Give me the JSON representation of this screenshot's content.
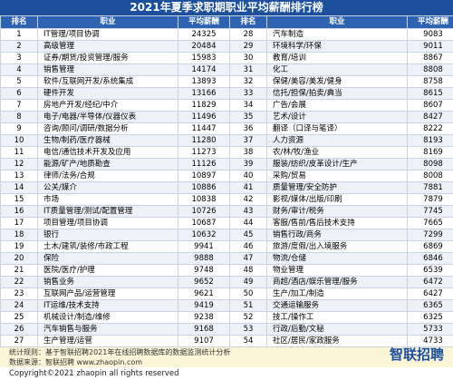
{
  "header": {
    "title": "2021年夏季求职期职业平均薪酬排行榜"
  },
  "table": {
    "columns": [
      "排名",
      "职业",
      "平均薪酬",
      "排名",
      "职业",
      "平均薪酬"
    ],
    "rows": [
      [
        1,
        "IT管理/项目协调",
        24325,
        28,
        "汽车制造",
        9083
      ],
      [
        2,
        "高级管理",
        20484,
        29,
        "环境科学/环保",
        9011
      ],
      [
        3,
        "证券/期货/投资管理/服务",
        15983,
        30,
        "教育/培训",
        8867
      ],
      [
        4,
        "销售管理",
        14174,
        31,
        "化工",
        8808
      ],
      [
        5,
        "软件/互联网开发/系统集成",
        13893,
        32,
        "保健/美容/美发/健身",
        8758
      ],
      [
        6,
        "硬件开发",
        13166,
        33,
        "信托/担保/拍卖/典当",
        8615
      ],
      [
        7,
        "房地产开发/经纪/中介",
        11829,
        34,
        "广告/会展",
        8607
      ],
      [
        8,
        "电子/电器/半导体/仪器仪表",
        11496,
        35,
        "艺术/设计",
        8427
      ],
      [
        9,
        "咨询/顾问/调研/数据分析",
        11447,
        36,
        "翻译（口译与笔译）",
        8222
      ],
      [
        10,
        "生物/制药/医疗器械",
        11280,
        37,
        "人力资源",
        8193
      ],
      [
        11,
        "电信/通信技术开发及应用",
        11273,
        38,
        "农/林/牧/渔业",
        8169
      ],
      [
        12,
        "能源/矿产/地质勘查",
        11126,
        39,
        "服装/纺织/皮革设计/生产",
        8098
      ],
      [
        13,
        "律师/法务/合规",
        10897,
        40,
        "采购/贸易",
        8008
      ],
      [
        14,
        "公关/媒介",
        10886,
        41,
        "质量管理/安全防护",
        7881
      ],
      [
        15,
        "市场",
        10838,
        42,
        "影视/媒体/出版/印刷",
        7879
      ],
      [
        16,
        "IT质量管理/测试/配置管理",
        10726,
        43,
        "财务/审计/税务",
        7745
      ],
      [
        17,
        "项目管理/项目协调",
        10687,
        44,
        "客服/售前/售后技术支持",
        7665
      ],
      [
        18,
        "银行",
        10632,
        45,
        "销售行政/商务",
        7299
      ],
      [
        19,
        "土木/建筑/装修/市政工程",
        9941,
        46,
        "旅游/度假/出入境服务",
        6869
      ],
      [
        20,
        "保险",
        9888,
        47,
        "物流/仓储",
        6846
      ],
      [
        21,
        "医院/医疗/护理",
        9748,
        48,
        "物业管理",
        6539
      ],
      [
        22,
        "销售业务",
        9652,
        49,
        "商超/酒店/娱乐管理/服务",
        6472
      ],
      [
        23,
        "互联网产品/运营管理",
        9621,
        50,
        "生产/加工/制造",
        6427
      ],
      [
        24,
        "IT运维/技术支持",
        9419,
        51,
        "交通运输服务",
        6365
      ],
      [
        25,
        "机械设计/制造/维修",
        9238,
        52,
        "技工/操作工",
        6325
      ],
      [
        26,
        "汽车销售与服务",
        9168,
        53,
        "行政/后勤/文秘",
        5733
      ],
      [
        27,
        "生产管理/运营",
        9107,
        54,
        "社区/居民/家政服务",
        4733
      ]
    ]
  },
  "footer": {
    "rule": "统计规则：基于智联招聘2021年在线招聘数据库的数据监测统计分析",
    "source": "数据来源：智联招聘 www.zhaopin.com",
    "logo": "智联招聘",
    "copyright": "Copyright©2021 zhaopin all rights reserved"
  }
}
